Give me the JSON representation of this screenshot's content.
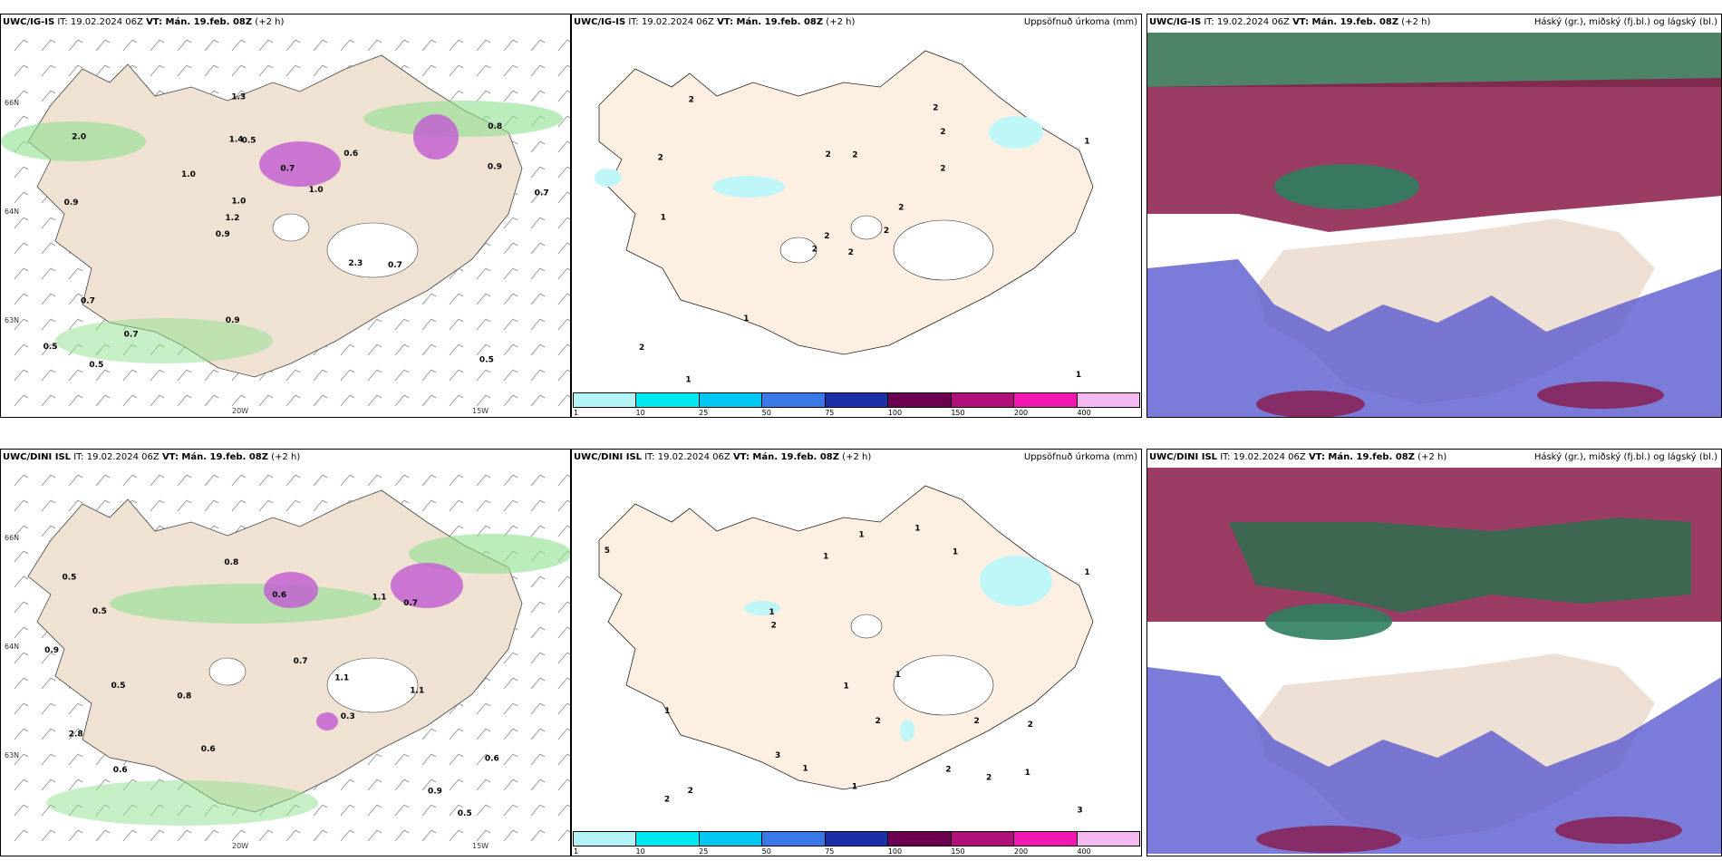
{
  "rows": [
    {
      "model": "UWC/IG-IS",
      "it_label": "IT: 19.02.2024 06Z",
      "vt_label": "VT: Mán. 19.feb. 08Z",
      "lead": "(+2 h)"
    },
    {
      "model": "UWC/DINI ISL",
      "it_label": "IT: 19.02.2024 06Z",
      "vt_label": "VT: Mán. 19.feb. 08Z",
      "lead": "(+2 h)"
    }
  ],
  "precip_panel": {
    "right_title": "Uppsöfnuð úrkoma (mm)"
  },
  "cloud_panel": {
    "right_title": "Háský (gr.), miðský (fj.bl.) og lágský (bl.)"
  },
  "legend": {
    "ticks": [
      "1",
      "10",
      "25",
      "50",
      "75",
      "100",
      "150",
      "200",
      "400"
    ],
    "colors": [
      "#b4f4f8",
      "#00e8f0",
      "#00c8f0",
      "#3a78e8",
      "#1c2ea8",
      "#6c0050",
      "#b0107a",
      "#f018b0",
      "#f4b8f0"
    ]
  },
  "wind_panel": {
    "lat_labels": [
      "66N",
      "64N",
      "63N"
    ],
    "lon_labels": [
      "20W",
      "15W"
    ],
    "top_values": [
      "0.5",
      "0.9",
      "0.8",
      "0.9",
      "0.6",
      "0.5",
      "1.4",
      "0.7",
      "0.7",
      "1.0",
      "0.5",
      "0.7",
      "0.5",
      "1.0",
      "0.7",
      "2.0",
      "1.3",
      "0.7",
      "2.3",
      "0.9",
      "1.2",
      "0.9",
      "1.0"
    ],
    "bottom_values": [
      "0.5",
      "0.5",
      "0.3",
      "0.5",
      "0.6",
      "0.5",
      "0.6",
      "0.8",
      "0.7",
      "0.6",
      "1.1",
      "0.9",
      "0.6",
      "0.8",
      "1.1",
      "2.8",
      "1.1",
      "0.7",
      "0.9"
    ]
  },
  "precip_values_top": [
    "2",
    "2",
    "2",
    "2",
    "2",
    "1",
    "2",
    "2",
    "2",
    "2",
    "2",
    "1",
    "1",
    "1",
    "2",
    "2",
    "1",
    "2"
  ],
  "precip_values_bottom": [
    "2",
    "2",
    "1",
    "2",
    "1",
    "1",
    "1",
    "1",
    "2",
    "3",
    "3",
    "2",
    "1",
    "1",
    "2",
    "1",
    "2",
    "1",
    "1",
    "1",
    "5",
    "2",
    "1"
  ]
}
